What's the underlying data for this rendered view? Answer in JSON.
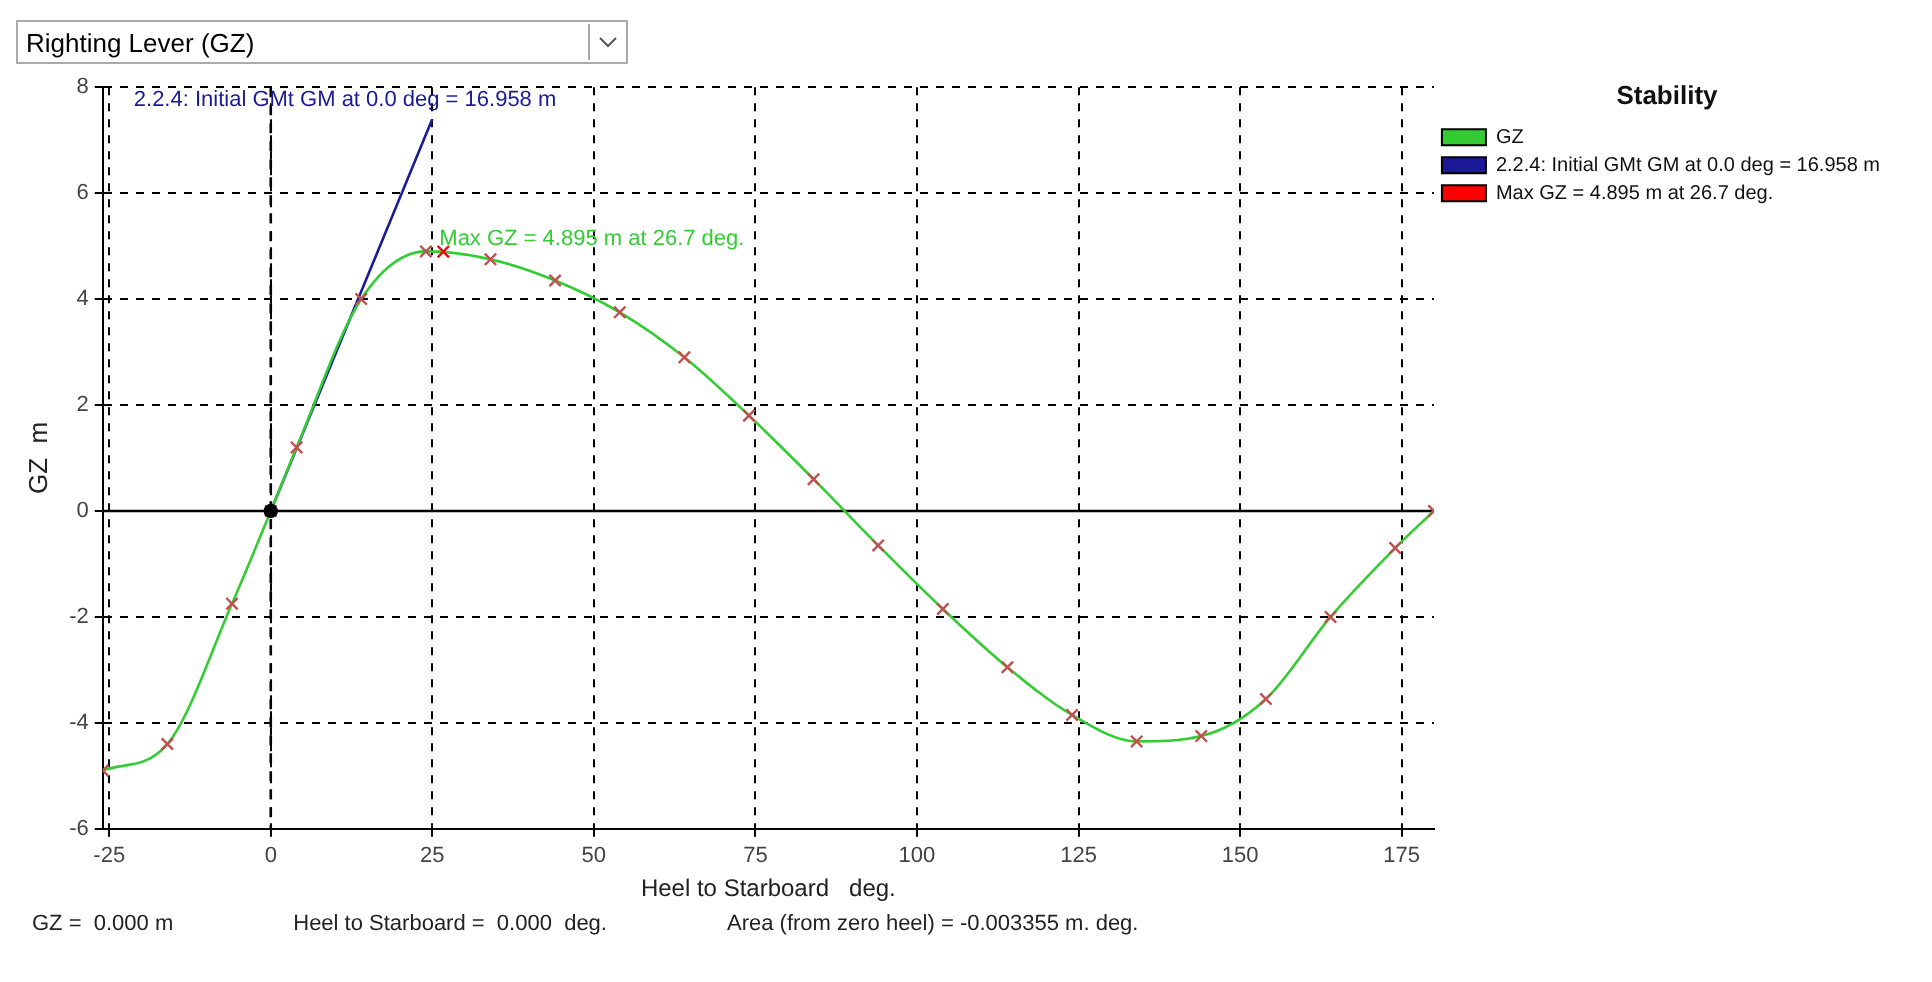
{
  "chart_data": {
    "type": "line",
    "title": "Righting Lever (GZ)",
    "xlabel": "Heel to Starboard   deg.",
    "ylabel": "GZ  m",
    "legend_title": "Stability",
    "xlim": [
      -26,
      180
    ],
    "xticks": [
      -25,
      0,
      25,
      50,
      75,
      100,
      125,
      150,
      175
    ],
    "ylim": [
      -6,
      8
    ],
    "yticks": [
      -6,
      -4,
      -2,
      0,
      2,
      4,
      6,
      8
    ],
    "grid": true,
    "legend": "top right",
    "series": [
      {
        "name": "GZ",
        "color": "#33cc33",
        "marker": "cross",
        "x": [
          -26,
          -16,
          -6,
          0,
          4,
          14,
          24,
          34,
          44,
          54,
          64,
          74,
          84,
          94,
          104,
          114,
          124,
          134,
          144,
          154,
          164,
          174,
          180
        ],
        "values": [
          -4.9,
          -4.4,
          -1.75,
          0,
          1.2,
          4.0,
          4.9,
          4.75,
          4.35,
          3.75,
          2.9,
          1.8,
          0.6,
          -0.65,
          -1.85,
          -2.95,
          -3.85,
          -4.35,
          -4.25,
          -3.55,
          -2.0,
          -0.7,
          0
        ],
        "colors": [
          "#c05050",
          "#c05050",
          "#c05050",
          "#c05050",
          "#c05050",
          "#c05050",
          "#c05050",
          "#c05050",
          "#c05050",
          "#c05050",
          "#c05050",
          "#c05050",
          "#c05050",
          "#c05050",
          "#c05050",
          "#c05050",
          "#c05050",
          "#c05050",
          "#c05050",
          "#c05050",
          "#c05050",
          "#c05050",
          "#c05050"
        ]
      },
      {
        "name": "2.2.4: Initial GMt GM at 0.0 deg = 16.958 m",
        "color": "#1a1a99",
        "marker": "none",
        "x": [
          0,
          25
        ],
        "values": [
          0,
          7.4
        ]
      },
      {
        "name": "Max GZ = 4.895 m at 26.7 deg.",
        "type": "scatter",
        "color": "#ff0000",
        "marker": "cross",
        "x": [
          26.7
        ],
        "values": [
          4.895
        ]
      },
      {
        "type": "scatter",
        "color": "#000000",
        "marker": "circle",
        "x": [
          0
        ],
        "values": [
          0
        ]
      }
    ],
    "ref_lines": [
      {
        "axis": "x",
        "value": 0,
        "color": "#000000",
        "line_style": "dashed"
      },
      {
        "axis": "y",
        "value": 0,
        "color": "#000000",
        "line_style": "solid"
      }
    ],
    "annotations": [
      {
        "text": "2.2.4: Initial GMt GM at 0.0 deg = 16.958 m",
        "x": 25,
        "y": 7.4
      },
      {
        "text": "Max GZ = 4.895 m at 26.7 deg.",
        "x": 26.7,
        "y": 4.895
      },
      "GZ =  0.000 m",
      "Heel to Starboard =  0.000  deg.",
      "Area (from zero heel) = -0.003355 m. deg."
    ]
  }
}
